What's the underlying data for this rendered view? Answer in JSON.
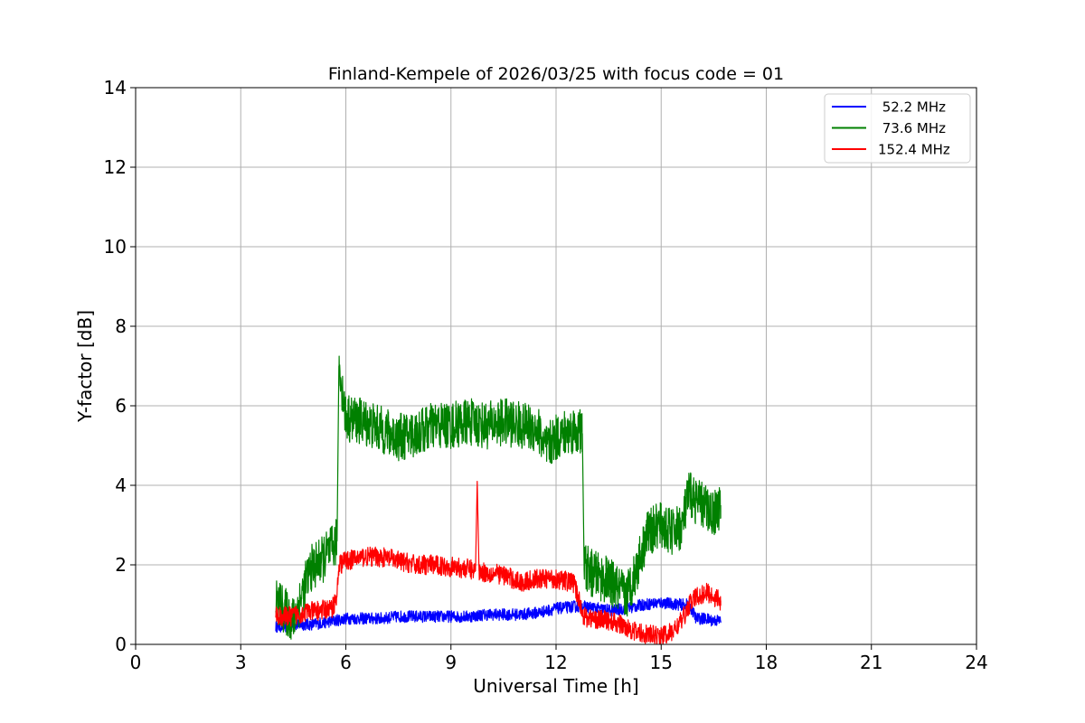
{
  "chart_data": {
    "type": "line",
    "title": "Finland-Kempele of 2026/03/25 with focus code = 01",
    "xlabel": "Universal Time [h]",
    "ylabel": "Y-factor [dB]",
    "xlim": [
      0,
      24
    ],
    "ylim": [
      0,
      14
    ],
    "xticks": [
      0,
      3,
      6,
      9,
      12,
      15,
      18,
      21,
      24
    ],
    "yticks": [
      0,
      2,
      4,
      6,
      8,
      10,
      12,
      14
    ],
    "grid": true,
    "legend_position": "top-right",
    "series": [
      {
        "name": " 52.2 MHz",
        "color": "#0000ff",
        "x": [
          4.0,
          4.3,
          4.6,
          5.0,
          5.4,
          5.7,
          6.0,
          6.5,
          7.0,
          7.5,
          8.0,
          8.5,
          9.0,
          9.5,
          10.0,
          10.5,
          11.0,
          11.5,
          12.0,
          12.5,
          12.8,
          13.2,
          13.6,
          14.0,
          14.5,
          15.0,
          15.5,
          15.8,
          16.0,
          16.2,
          16.5,
          16.7
        ],
        "y": [
          0.45,
          0.45,
          0.5,
          0.5,
          0.55,
          0.6,
          0.65,
          0.65,
          0.65,
          0.7,
          0.7,
          0.7,
          0.7,
          0.7,
          0.75,
          0.75,
          0.75,
          0.8,
          0.9,
          0.95,
          0.95,
          0.9,
          0.85,
          0.9,
          1.0,
          1.05,
          1.0,
          1.0,
          0.65,
          0.65,
          0.6,
          0.6
        ],
        "noise": 0.15
      },
      {
        "name": " 73.6 MHz",
        "color": "#008000",
        "x": [
          4.0,
          4.3,
          4.5,
          4.8,
          5.0,
          5.3,
          5.6,
          5.75,
          5.8,
          5.9,
          6.0,
          6.5,
          7.0,
          7.5,
          8.0,
          8.5,
          9.0,
          9.5,
          10.0,
          10.5,
          11.0,
          11.5,
          11.7,
          12.0,
          12.5,
          12.75,
          12.8,
          13.0,
          13.5,
          14.0,
          14.3,
          14.6,
          15.0,
          15.3,
          15.6,
          15.8,
          16.0,
          16.5,
          16.7
        ],
        "y": [
          1.1,
          0.8,
          0.6,
          1.4,
          1.9,
          2.1,
          2.4,
          2.6,
          7.0,
          6.4,
          5.7,
          5.6,
          5.4,
          5.2,
          5.3,
          5.5,
          5.5,
          5.6,
          5.5,
          5.6,
          5.5,
          5.4,
          4.9,
          5.2,
          5.4,
          5.3,
          2.0,
          1.8,
          1.6,
          1.2,
          1.9,
          2.8,
          3.0,
          2.8,
          3.0,
          3.8,
          3.6,
          3.3,
          3.5
        ],
        "noise": 0.6
      },
      {
        "name": "152.4 MHz",
        "color": "#ff0000",
        "x": [
          4.0,
          4.4,
          4.8,
          5.2,
          5.6,
          5.75,
          5.8,
          6.0,
          6.5,
          7.0,
          7.5,
          8.0,
          8.5,
          9.0,
          9.5,
          9.7,
          9.75,
          9.8,
          10.0,
          10.5,
          11.0,
          11.5,
          12.0,
          12.5,
          12.8,
          13.0,
          13.5,
          14.0,
          14.3,
          14.6,
          15.0,
          15.3,
          15.6,
          15.8,
          16.0,
          16.3,
          16.7
        ],
        "y": [
          0.7,
          0.7,
          0.8,
          0.85,
          0.9,
          1.2,
          2.0,
          2.1,
          2.2,
          2.2,
          2.1,
          2.0,
          2.0,
          1.95,
          1.9,
          1.85,
          4.1,
          1.85,
          1.8,
          1.75,
          1.55,
          1.65,
          1.65,
          1.55,
          0.7,
          0.65,
          0.6,
          0.45,
          0.3,
          0.25,
          0.2,
          0.3,
          0.6,
          1.0,
          1.2,
          1.3,
          1.1
        ],
        "noise": 0.25
      }
    ]
  }
}
